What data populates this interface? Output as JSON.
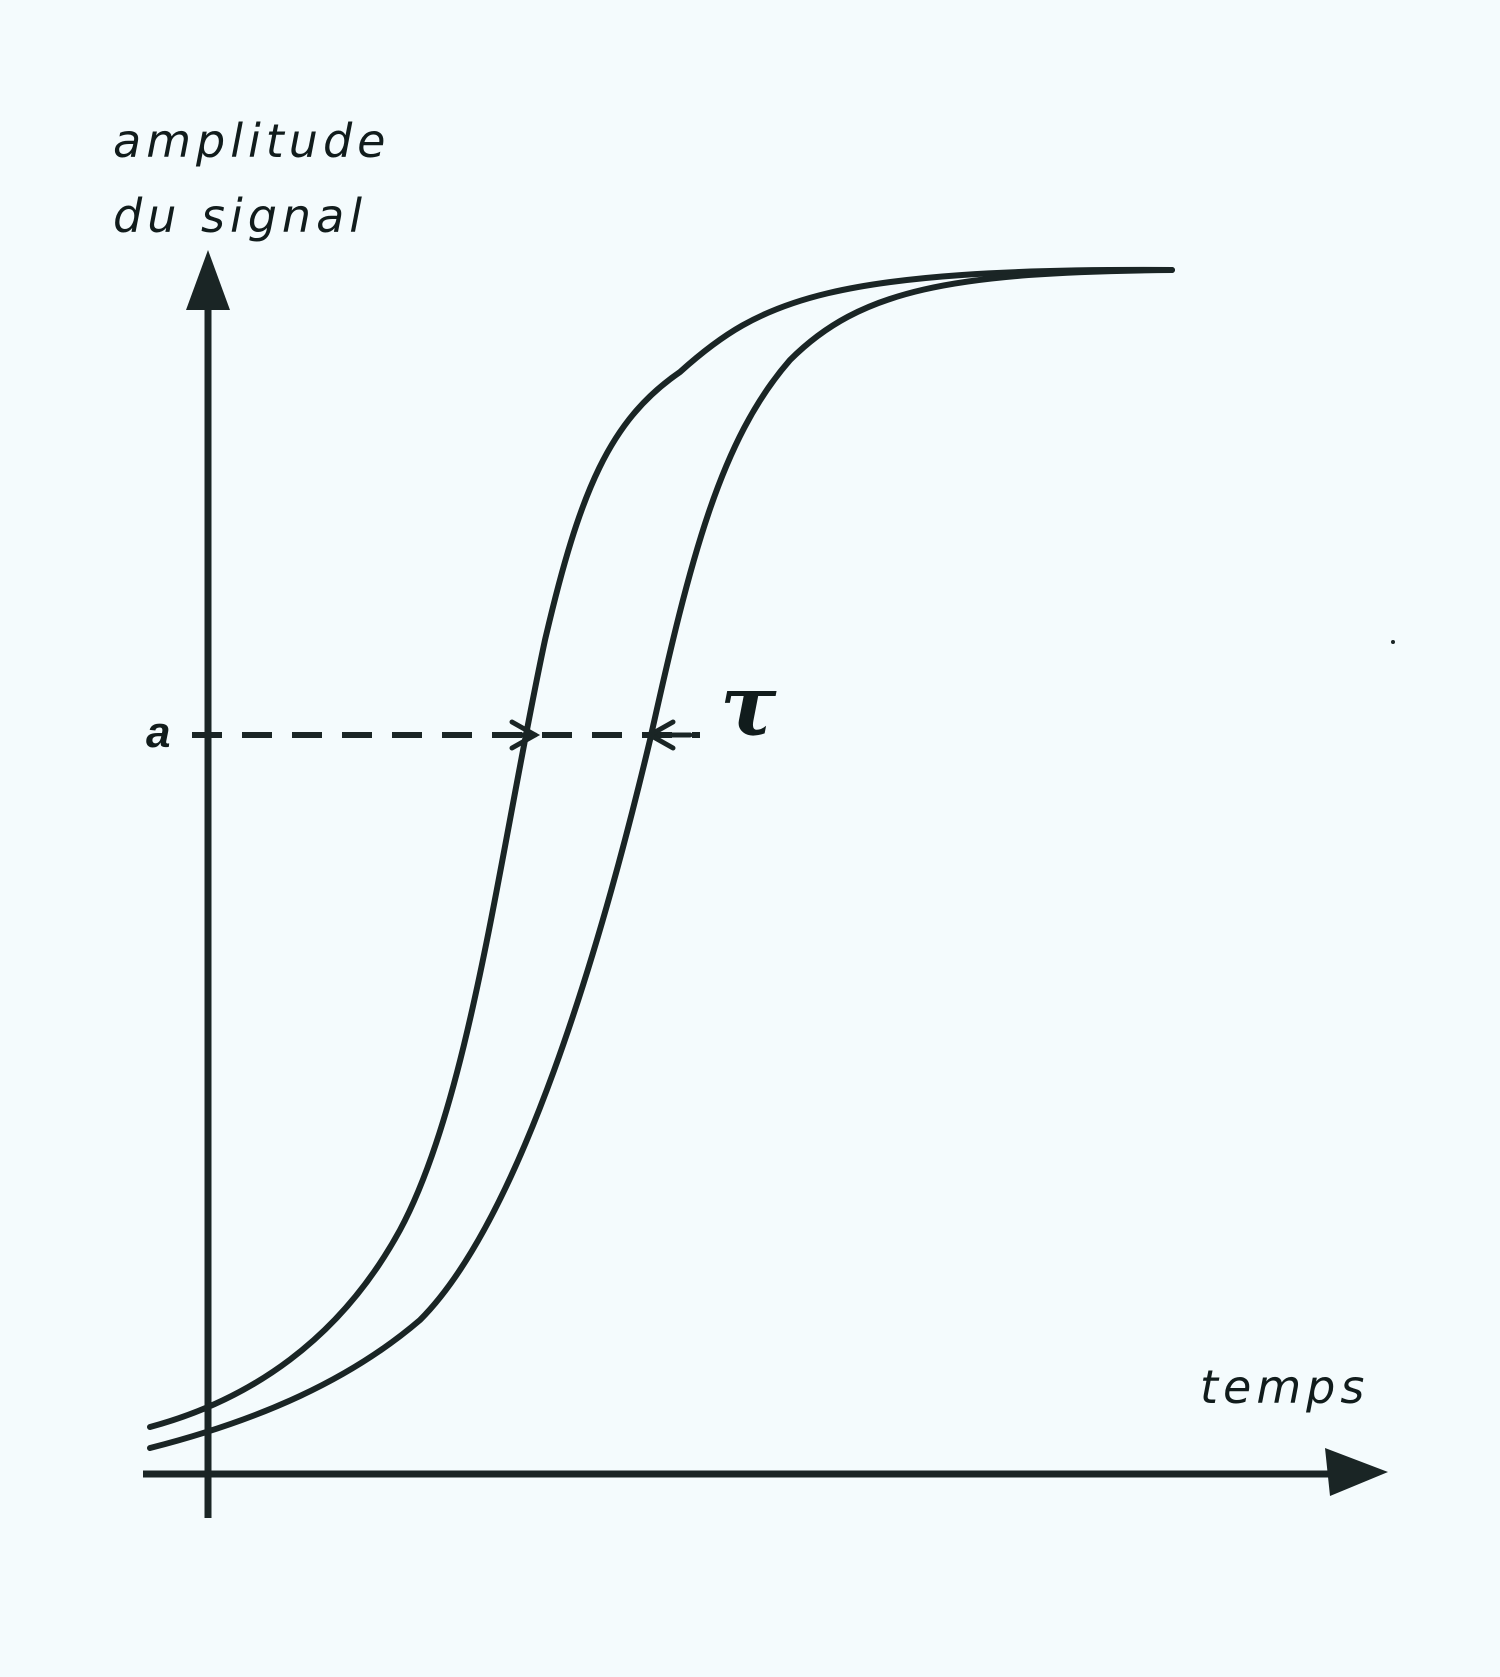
{
  "diagram": {
    "y_axis_label_line1": "amplitude",
    "y_axis_label_line2": "du signal",
    "x_axis_label": "temps",
    "level_label": "a",
    "delay_label": "τ"
  },
  "colors": {
    "background": "#f4fbfd",
    "ink": "#1a2525"
  }
}
